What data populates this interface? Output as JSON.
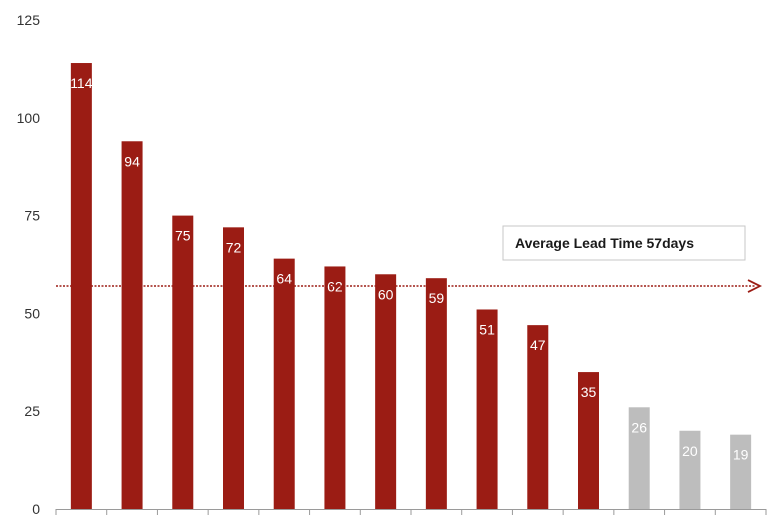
{
  "chart_data": {
    "type": "bar",
    "title": "",
    "xlabel": "",
    "ylabel": "",
    "ylim": [
      0,
      125
    ],
    "yticks": [
      0,
      25,
      50,
      75,
      100,
      125
    ],
    "grid": false,
    "values": [
      114,
      94,
      75,
      72,
      64,
      62,
      60,
      59,
      51,
      47,
      35,
      26,
      20,
      19
    ],
    "bar_colors": [
      "#9b1c14",
      "#9b1c14",
      "#9b1c14",
      "#9b1c14",
      "#9b1c14",
      "#9b1c14",
      "#9b1c14",
      "#9b1c14",
      "#9b1c14",
      "#9b1c14",
      "#9b1c14",
      "#bdbdbd",
      "#bdbdbd",
      "#bdbdbd"
    ],
    "average": {
      "value": 57,
      "label": "Average Lead Time 57days",
      "line_color": "#9b1c14",
      "style": "dashed-with-arrow"
    }
  }
}
